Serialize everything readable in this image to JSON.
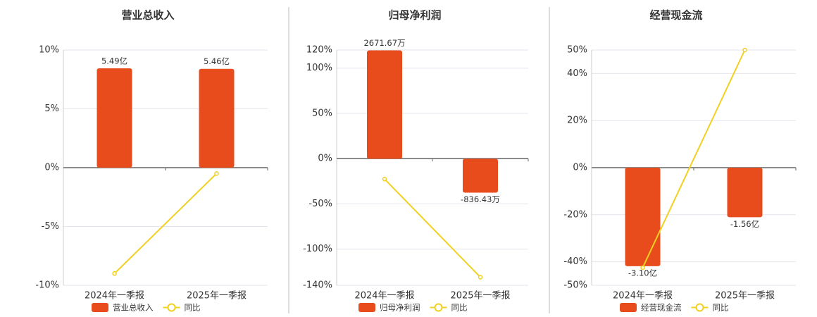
{
  "chart_data": [
    {
      "type": "combo",
      "title": "营业总收入",
      "categories": [
        "2024年一季报",
        "2025年一季报"
      ],
      "ylim": [
        -10,
        10
      ],
      "yticks": [
        {
          "value": 10,
          "label": "10%"
        },
        {
          "value": 5,
          "label": "5%"
        },
        {
          "value": 0,
          "label": "0%"
        },
        {
          "value": -5,
          "label": "-5%"
        },
        {
          "value": -10,
          "label": "-10%"
        }
      ],
      "y2lim": [
        -6.5,
        6.5
      ],
      "grid": true,
      "series": [
        {
          "name": "营业总收入",
          "type": "bar",
          "axis": "y2",
          "color": "#e84c1c",
          "values": [
            5.49,
            5.46
          ],
          "value_labels": [
            "5.49亿",
            "5.46亿"
          ]
        },
        {
          "name": "同比",
          "type": "line",
          "color": "#f0d020",
          "values": [
            -9.0,
            -0.5
          ]
        }
      ]
    },
    {
      "type": "combo",
      "title": "归母净利润",
      "categories": [
        "2024年一季报",
        "2025年一季报"
      ],
      "ylim": [
        -140,
        120
      ],
      "yticks": [
        {
          "value": 120,
          "label": "120%"
        },
        {
          "value": 100,
          "label": "100%"
        },
        {
          "value": 50,
          "label": "50%"
        },
        {
          "value": 0,
          "label": "0%"
        },
        {
          "value": -50,
          "label": "-50%"
        },
        {
          "value": -100,
          "label": "-100%"
        },
        {
          "value": -140,
          "label": "-140%"
        }
      ],
      "y2lim": [
        -3120,
        2680
      ],
      "grid": true,
      "series": [
        {
          "name": "归母净利润",
          "type": "bar",
          "axis": "y2",
          "color": "#e84c1c",
          "values": [
            2671.67,
            -836.43
          ],
          "value_labels": [
            "2671.67万",
            "-836.43万"
          ]
        },
        {
          "name": "同比",
          "type": "line",
          "color": "#f0d020",
          "values": [
            -22.6,
            -131
          ]
        }
      ]
    },
    {
      "type": "combo",
      "title": "经营现金流",
      "categories": [
        "2024年一季报",
        "2025年一季报"
      ],
      "ylim": [
        -50,
        50
      ],
      "yticks": [
        {
          "value": 50,
          "label": "50%"
        },
        {
          "value": 40,
          "label": "40%"
        },
        {
          "value": 20,
          "label": "20%"
        },
        {
          "value": 0,
          "label": "0%"
        },
        {
          "value": -20,
          "label": "-20%"
        },
        {
          "value": -40,
          "label": "-40%"
        },
        {
          "value": -50,
          "label": "-50%"
        }
      ],
      "y2lim": [
        -3.7,
        3.7
      ],
      "grid": true,
      "series": [
        {
          "name": "经营现金流",
          "type": "bar",
          "axis": "y2",
          "color": "#e84c1c",
          "values": [
            -3.1,
            -1.56
          ],
          "value_labels": [
            "-3.10亿",
            "-1.56亿"
          ]
        },
        {
          "name": "同比",
          "type": "line",
          "color": "#f0d020",
          "values": [
            -42.5,
            50
          ]
        }
      ]
    }
  ]
}
